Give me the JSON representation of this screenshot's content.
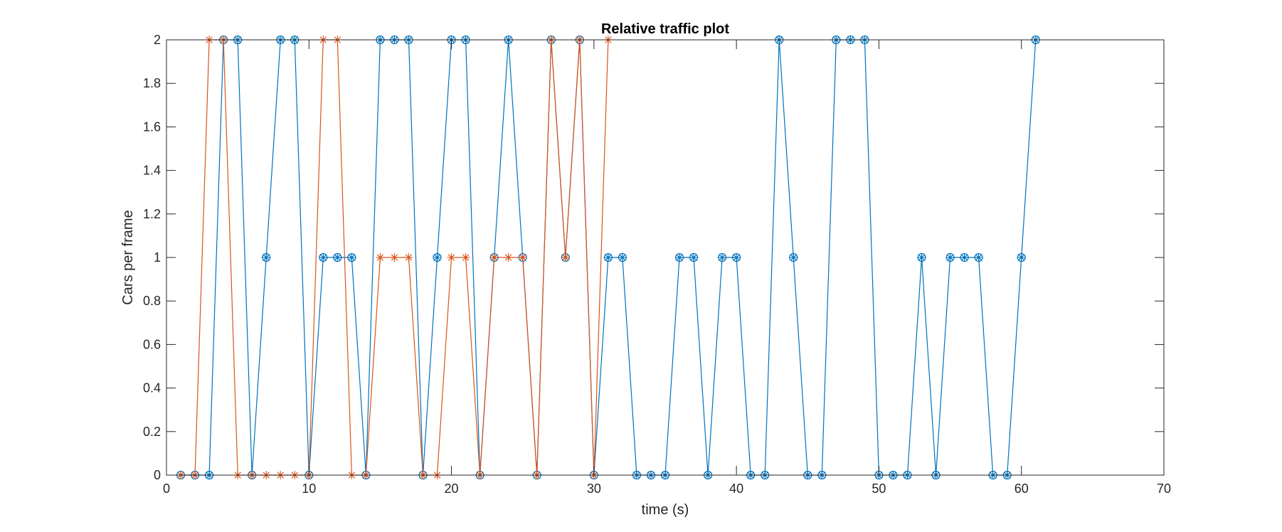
{
  "chart_data": {
    "type": "line",
    "title": "Relative traffic plot",
    "xlabel": "time (s)",
    "ylabel": "Cars per frame",
    "xlim": [
      0,
      70
    ],
    "ylim": [
      0,
      2
    ],
    "xticks": [
      "0",
      "10",
      "20",
      "30",
      "40",
      "50",
      "60",
      "70"
    ],
    "yticks": [
      "0",
      "0.2",
      "0.4",
      "0.6",
      "0.8",
      "1",
      "1.2",
      "1.4",
      "1.6",
      "1.8",
      "2"
    ],
    "grid": false,
    "series": [
      {
        "color": "#0072BD",
        "marker": "circle-star",
        "x": [
          1,
          2,
          3,
          4,
          5,
          6,
          7,
          8,
          9,
          10,
          11,
          12,
          13,
          14,
          15,
          16,
          17,
          18,
          19,
          20,
          21,
          22,
          23,
          24,
          25,
          26,
          27,
          28,
          29,
          30,
          31,
          32,
          33,
          34,
          35,
          36,
          37,
          38,
          39,
          40,
          41,
          42,
          43,
          44,
          45,
          46,
          47,
          48,
          49,
          50,
          51,
          52,
          53,
          54,
          55,
          56,
          57,
          58,
          59,
          60,
          61
        ],
        "y": [
          0,
          0,
          0,
          2,
          2,
          0,
          1,
          2,
          2,
          0,
          1,
          1,
          1,
          0,
          2,
          2,
          2,
          0,
          1,
          2,
          2,
          0,
          1,
          2,
          1,
          0,
          2,
          1,
          2,
          0,
          1,
          1,
          0,
          0,
          0,
          1,
          1,
          0,
          1,
          1,
          0,
          0,
          2,
          1,
          0,
          0,
          2,
          2,
          2,
          0,
          0,
          0,
          1,
          0,
          1,
          1,
          1,
          0,
          0,
          1,
          2
        ]
      },
      {
        "color": "#D95319",
        "marker": "star",
        "x": [
          1,
          2,
          3,
          4,
          5,
          6,
          7,
          8,
          9,
          10,
          11,
          12,
          13,
          14,
          15,
          16,
          17,
          18,
          19,
          20,
          21,
          22,
          23,
          24,
          25,
          26,
          27,
          28,
          29,
          30,
          31
        ],
        "y": [
          0,
          0,
          2,
          2,
          0,
          0,
          0,
          0,
          0,
          0,
          2,
          2,
          0,
          0,
          1,
          1,
          1,
          0,
          0,
          1,
          1,
          0,
          1,
          1,
          1,
          0,
          2,
          1,
          2,
          0,
          2
        ]
      }
    ]
  }
}
